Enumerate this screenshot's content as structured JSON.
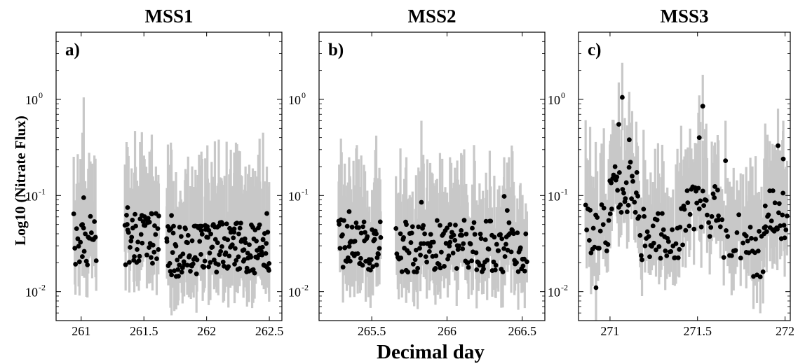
{
  "figure": {
    "ylabel": "Log10 (Nitrate Flux)",
    "xlabel": "Decimal day"
  },
  "colors": {
    "marker": "#000000",
    "errorbar": "#c8c8c8",
    "axes": "#000000",
    "background": "#ffffff"
  },
  "chart_data": [
    {
      "type": "scatter",
      "title": "MSS1",
      "panel_label": "a)",
      "xlim": [
        260.8,
        262.6
      ],
      "ylim": [
        0.005,
        5
      ],
      "yscale": "log",
      "xticks": [
        261,
        261.5,
        262,
        262.5
      ],
      "xtick_labels": [
        "261",
        "261.5",
        "262",
        "262.5"
      ],
      "yticks": [
        0.01,
        0.1,
        1
      ],
      "ytick_labels": [
        "10",
        "10",
        "10"
      ],
      "ytick_exponents": [
        "-2",
        "-1",
        "0"
      ],
      "grid": false,
      "clusters": [
        {
          "start": 260.94,
          "end": 261.12,
          "base": 0.035,
          "n": 24
        },
        {
          "start": 261.35,
          "end": 261.62,
          "base": 0.035,
          "n": 48
        },
        {
          "start": 261.68,
          "end": 261.96,
          "base": 0.026,
          "n": 54
        },
        {
          "start": 261.96,
          "end": 262.5,
          "base": 0.029,
          "n": 110
        }
      ],
      "highlights": [
        {
          "x": 261.02,
          "y": 0.095,
          "upper": 1.05
        },
        {
          "x": 261.01,
          "y": 0.05,
          "upper": 0.45
        },
        {
          "x": 261.37,
          "y": 0.075,
          "upper": 0.32
        },
        {
          "x": 261.56,
          "y": 0.065,
          "upper": 0.3
        },
        {
          "x": 261.72,
          "y": 0.062,
          "upper": 0.3
        },
        {
          "x": 262.22,
          "y": 0.045,
          "upper": 0.28
        },
        {
          "x": 262.45,
          "y": 0.035,
          "upper": 0.45
        },
        {
          "x": 262.48,
          "y": 0.065,
          "upper": 0.2
        }
      ]
    },
    {
      "type": "scatter",
      "title": "MSS2",
      "panel_label": "b)",
      "xlim": [
        265.15,
        266.65
      ],
      "ylim": [
        0.005,
        5
      ],
      "yscale": "log",
      "xticks": [
        265.5,
        266,
        266.5
      ],
      "xtick_labels": [
        "265.5",
        "266",
        "266.5"
      ],
      "yticks": [
        0.01,
        0.1,
        1
      ],
      "ytick_labels": [
        "10",
        "10",
        "10"
      ],
      "ytick_exponents": [
        "-2",
        "-1",
        "0"
      ],
      "grid": false,
      "clusters": [
        {
          "start": 265.28,
          "end": 265.56,
          "base": 0.03,
          "n": 58
        },
        {
          "start": 265.66,
          "end": 266.53,
          "base": 0.03,
          "n": 150
        }
      ],
      "highlights": [
        {
          "x": 265.35,
          "y": 0.068,
          "upper": 0.25
        },
        {
          "x": 265.53,
          "y": 0.04,
          "upper": 0.42
        },
        {
          "x": 265.83,
          "y": 0.085,
          "upper": 0.6
        },
        {
          "x": 265.73,
          "y": 0.05,
          "upper": 0.25
        },
        {
          "x": 266.02,
          "y": 0.05,
          "upper": 0.25
        },
        {
          "x": 266.38,
          "y": 0.098,
          "upper": 0.25
        },
        {
          "x": 266.4,
          "y": 0.07,
          "upper": 0.22
        }
      ]
    },
    {
      "type": "scatter",
      "title": "MSS3",
      "panel_label": "c)",
      "xlim": [
        270.82,
        272.03
      ],
      "ylim": [
        0.005,
        5
      ],
      "yscale": "log",
      "xticks": [
        271,
        271.5,
        272
      ],
      "xtick_labels": [
        "271",
        "271.5",
        "272"
      ],
      "yticks": [
        0.01,
        0.1,
        1
      ],
      "ytick_labels": [
        "10",
        "10",
        "10"
      ],
      "ytick_exponents": [
        "-2",
        "-1",
        "0"
      ],
      "grid": false,
      "clusters": [
        {
          "start": 270.86,
          "end": 271.0,
          "base": 0.045,
          "n": 22
        },
        {
          "start": 271.0,
          "end": 271.16,
          "base": 0.12,
          "n": 30
        },
        {
          "start": 271.16,
          "end": 271.42,
          "base": 0.04,
          "n": 44
        },
        {
          "start": 271.42,
          "end": 271.62,
          "base": 0.07,
          "n": 32
        },
        {
          "start": 271.62,
          "end": 271.78,
          "base": 0.035,
          "n": 16
        },
        {
          "start": 271.78,
          "end": 271.88,
          "base": 0.025,
          "n": 16
        },
        {
          "start": 271.88,
          "end": 272.01,
          "base": 0.06,
          "n": 26
        }
      ],
      "highlights": [
        {
          "x": 271.07,
          "y": 1.05,
          "upper": 2.4
        },
        {
          "x": 271.05,
          "y": 0.55,
          "upper": 1.5
        },
        {
          "x": 271.11,
          "y": 0.38,
          "upper": 1.2
        },
        {
          "x": 271.53,
          "y": 0.85,
          "upper": 1.8
        },
        {
          "x": 271.51,
          "y": 0.4,
          "upper": 1.1
        },
        {
          "x": 271.66,
          "y": 0.23,
          "upper": 0.6
        },
        {
          "x": 271.96,
          "y": 0.33,
          "upper": 0.8
        },
        {
          "x": 271.99,
          "y": 0.24,
          "upper": 0.6
        },
        {
          "x": 270.92,
          "y": 0.011,
          "upper": 0.02
        }
      ]
    }
  ]
}
